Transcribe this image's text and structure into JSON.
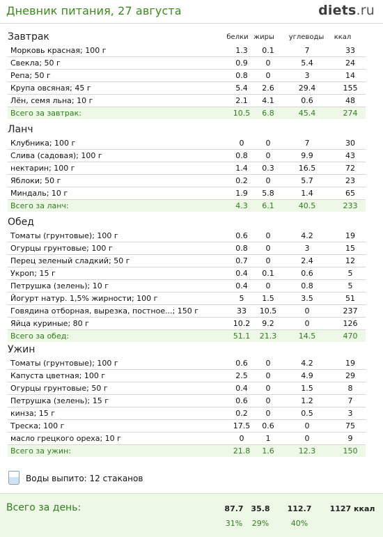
{
  "header": {
    "title": "Дневник питания, 27 августа",
    "logo_main": "diets",
    "logo_tld": ".ru"
  },
  "columns": {
    "protein": "белки",
    "fat": "жиры",
    "carbs": "углеводы",
    "kcal": "ккал"
  },
  "meals": [
    {
      "title": "Завтрак",
      "items": [
        {
          "name": "Морковь красная; 100 г",
          "p": "1.3",
          "f": "0.1",
          "c": "7",
          "k": "33"
        },
        {
          "name": "Свекла; 50 г",
          "p": "0.9",
          "f": "0",
          "c": "5.4",
          "k": "24"
        },
        {
          "name": "Репа; 50 г",
          "p": "0.8",
          "f": "0",
          "c": "3",
          "k": "14"
        },
        {
          "name": "Крупа овсяная; 45 г",
          "p": "5.4",
          "f": "2.6",
          "c": "29.4",
          "k": "155"
        },
        {
          "name": "Лён, семя льна; 10 г",
          "p": "2.1",
          "f": "4.1",
          "c": "0.6",
          "k": "48"
        }
      ],
      "total": {
        "name": "Всего за завтрак:",
        "p": "10.5",
        "f": "6.8",
        "c": "45.4",
        "k": "274"
      }
    },
    {
      "title": "Ланч",
      "items": [
        {
          "name": "Клубника; 100 г",
          "p": "0",
          "f": "0",
          "c": "7",
          "k": "30"
        },
        {
          "name": "Слива (садовая); 100 г",
          "p": "0.8",
          "f": "0",
          "c": "9.9",
          "k": "43"
        },
        {
          "name": "нектарин; 100 г",
          "p": "1.4",
          "f": "0.3",
          "c": "16.5",
          "k": "72"
        },
        {
          "name": "Яблоки; 50 г",
          "p": "0.2",
          "f": "0",
          "c": "5.7",
          "k": "23"
        },
        {
          "name": "Миндаль; 10 г",
          "p": "1.9",
          "f": "5.8",
          "c": "1.4",
          "k": "65"
        }
      ],
      "total": {
        "name": "Всего за ланч:",
        "p": "4.3",
        "f": "6.1",
        "c": "40.5",
        "k": "233"
      }
    },
    {
      "title": "Обед",
      "items": [
        {
          "name": "Томаты (грунтовые); 100 г",
          "p": "0.6",
          "f": "0",
          "c": "4.2",
          "k": "19"
        },
        {
          "name": "Огурцы грунтовые; 100 г",
          "p": "0.8",
          "f": "0",
          "c": "3",
          "k": "15"
        },
        {
          "name": "Перец зеленый сладкий; 50 г",
          "p": "0.7",
          "f": "0",
          "c": "2.4",
          "k": "12"
        },
        {
          "name": "Укроп; 15 г",
          "p": "0.4",
          "f": "0.1",
          "c": "0.6",
          "k": "5"
        },
        {
          "name": "Петрушка (зелень); 10 г",
          "p": "0.4",
          "f": "0",
          "c": "0.8",
          "k": "5"
        },
        {
          "name": "Йогурт натур. 1,5% жирности; 100 г",
          "p": "5",
          "f": "1.5",
          "c": "3.5",
          "k": "51"
        },
        {
          "name": "Говядина отборная, вырезка, постное...; 150 г",
          "p": "33",
          "f": "10.5",
          "c": "0",
          "k": "237"
        },
        {
          "name": "Яйца куриные; 80 г",
          "p": "10.2",
          "f": "9.2",
          "c": "0",
          "k": "126"
        }
      ],
      "total": {
        "name": "Всего за обед:",
        "p": "51.1",
        "f": "21.3",
        "c": "14.5",
        "k": "470"
      }
    },
    {
      "title": "Ужин",
      "items": [
        {
          "name": "Томаты (грунтовые); 100 г",
          "p": "0.6",
          "f": "0",
          "c": "4.2",
          "k": "19"
        },
        {
          "name": "Капуста цветная; 100 г",
          "p": "2.5",
          "f": "0",
          "c": "4.9",
          "k": "29"
        },
        {
          "name": "Огурцы грунтовые; 50 г",
          "p": "0.4",
          "f": "0",
          "c": "1.5",
          "k": "8"
        },
        {
          "name": "Петрушка (зелень); 15 г",
          "p": "0.6",
          "f": "0",
          "c": "1.2",
          "k": "7"
        },
        {
          "name": "кинза; 15 г",
          "p": "0.2",
          "f": "0",
          "c": "0.5",
          "k": "3"
        },
        {
          "name": "Треска; 100 г",
          "p": "17.5",
          "f": "0.6",
          "c": "0",
          "k": "75"
        },
        {
          "name": "масло грецкого ореха; 10 г",
          "p": "0",
          "f": "1",
          "c": "0",
          "k": "9"
        }
      ],
      "total": {
        "name": "Всего за ужин:",
        "p": "21.8",
        "f": "1.6",
        "c": "12.3",
        "k": "150"
      }
    }
  ],
  "water": {
    "icon": "water-glass-icon",
    "text": "Воды выпито: 12 стаканов"
  },
  "day_total": {
    "label": "Всего за день:",
    "protein": "87.7",
    "fat": "35.8",
    "carbs": "112.7",
    "kcal": "1127 ккал",
    "protein_pct": "31%",
    "fat_pct": "29%",
    "carbs_pct": "40%"
  },
  "colors": {
    "accent_green": "#3a8a1c",
    "total_bg": "#eef8e7"
  }
}
